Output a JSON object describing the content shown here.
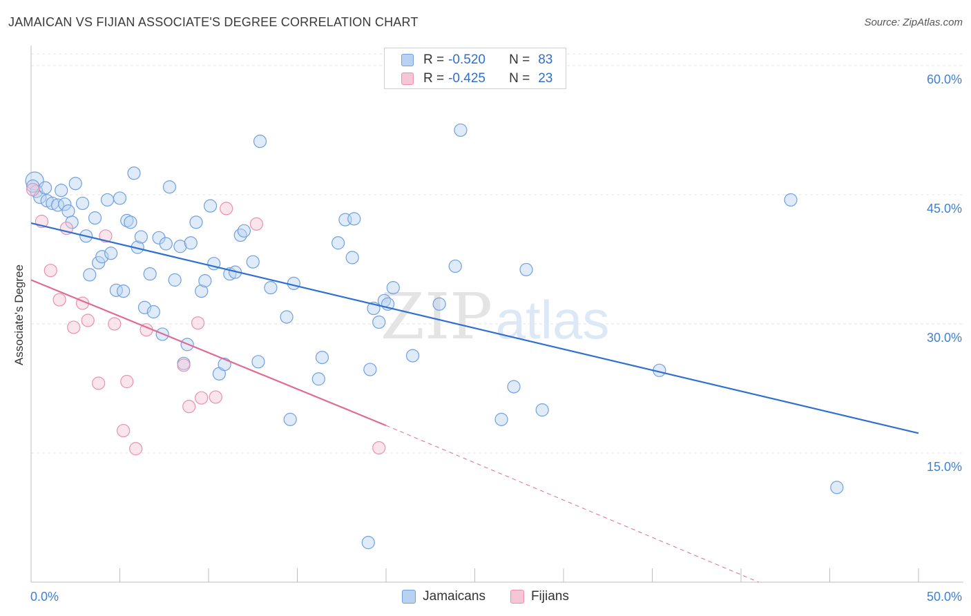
{
  "chart_data": {
    "type": "scatter",
    "title": "JAMAICAN VS FIJIAN ASSOCIATE'S DEGREE CORRELATION CHART",
    "source": "Source: ZipAtlas.com",
    "xlabel": "",
    "ylabel": "Associate's Degree",
    "xlim": [
      0,
      50
    ],
    "ylim": [
      0,
      62
    ],
    "x_tick_labels": [
      "0.0%",
      "50.0%"
    ],
    "y_ticks": [
      15,
      30,
      45,
      60
    ],
    "y_tick_labels": [
      "15.0%",
      "30.0%",
      "45.0%",
      "60.0%"
    ],
    "watermark": {
      "zip": "ZIP",
      "atlas": "atlas"
    },
    "legend": [
      {
        "name": "Jamaicans",
        "r_label": "R =",
        "r": "-0.520",
        "n_label": "N =",
        "n": "83",
        "color": "#6fa0e0",
        "fill": "#b9d2f2"
      },
      {
        "name": "Fijians",
        "r_label": "R =",
        "r": "-0.425",
        "n_label": "N =",
        "n": "23",
        "color": "#e890ad",
        "fill": "#f7c6d6"
      }
    ],
    "series": [
      {
        "name": "Jamaicans",
        "color": "#6fa0e0",
        "trend": {
          "x0": 0,
          "y0": 41.7,
          "x1": 50,
          "y1": 17.3,
          "color": "#2e6fd0"
        },
        "points": [
          [
            0.2,
            46.6
          ],
          [
            0.3,
            45.4
          ],
          [
            0.5,
            44.7
          ],
          [
            0.8,
            45.8
          ],
          [
            0.9,
            44.3
          ],
          [
            1.2,
            44.0
          ],
          [
            1.5,
            43.8
          ],
          [
            1.7,
            45.5
          ],
          [
            1.9,
            43.9
          ],
          [
            2.1,
            43.1
          ],
          [
            2.3,
            41.8
          ],
          [
            2.5,
            46.3
          ],
          [
            2.9,
            44.0
          ],
          [
            3.1,
            40.2
          ],
          [
            3.3,
            35.7
          ],
          [
            3.6,
            42.3
          ],
          [
            3.8,
            37.1
          ],
          [
            4.0,
            37.8
          ],
          [
            4.3,
            44.4
          ],
          [
            4.5,
            38.2
          ],
          [
            4.8,
            33.9
          ],
          [
            5.0,
            44.6
          ],
          [
            5.2,
            33.8
          ],
          [
            5.4,
            42.0
          ],
          [
            5.6,
            41.8
          ],
          [
            5.8,
            47.5
          ],
          [
            6.0,
            38.9
          ],
          [
            6.2,
            40.1
          ],
          [
            6.4,
            31.9
          ],
          [
            6.7,
            35.8
          ],
          [
            6.9,
            31.4
          ],
          [
            7.2,
            40.0
          ],
          [
            7.4,
            28.8
          ],
          [
            7.6,
            39.3
          ],
          [
            7.8,
            45.9
          ],
          [
            8.1,
            35.1
          ],
          [
            8.4,
            39.0
          ],
          [
            8.6,
            25.4
          ],
          [
            8.8,
            27.6
          ],
          [
            9.0,
            39.4
          ],
          [
            9.3,
            41.8
          ],
          [
            9.6,
            33.8
          ],
          [
            9.8,
            35.0
          ],
          [
            10.1,
            43.7
          ],
          [
            10.3,
            37.0
          ],
          [
            10.6,
            24.2
          ],
          [
            10.9,
            25.3
          ],
          [
            11.2,
            35.8
          ],
          [
            11.5,
            36.0
          ],
          [
            11.8,
            40.3
          ],
          [
            12.0,
            40.8
          ],
          [
            12.5,
            37.2
          ],
          [
            12.8,
            25.6
          ],
          [
            12.9,
            51.2
          ],
          [
            13.5,
            34.2
          ],
          [
            14.4,
            30.8
          ],
          [
            14.6,
            18.9
          ],
          [
            14.8,
            34.7
          ],
          [
            16.2,
            23.6
          ],
          [
            16.4,
            26.1
          ],
          [
            17.3,
            39.4
          ],
          [
            17.7,
            42.1
          ],
          [
            18.2,
            42.2
          ],
          [
            18.1,
            37.7
          ],
          [
            19.0,
            4.6
          ],
          [
            19.1,
            24.7
          ],
          [
            19.3,
            31.8
          ],
          [
            19.6,
            30.2
          ],
          [
            19.9,
            32.7
          ],
          [
            20.1,
            32.3
          ],
          [
            20.4,
            34.2
          ],
          [
            21.5,
            26.3
          ],
          [
            23.0,
            32.3
          ],
          [
            23.9,
            36.7
          ],
          [
            24.2,
            52.5
          ],
          [
            26.5,
            18.9
          ],
          [
            27.2,
            22.7
          ],
          [
            27.9,
            36.3
          ],
          [
            28.8,
            20.0
          ],
          [
            35.4,
            24.6
          ],
          [
            42.8,
            44.4
          ],
          [
            45.4,
            11.0
          ],
          [
            0.1,
            46.0
          ]
        ]
      },
      {
        "name": "Fijians",
        "color": "#e890ad",
        "trend": {
          "x0": 0,
          "y0": 35.1,
          "x1": 20,
          "y1": 18.2,
          "x2": 41,
          "y2": 0,
          "color": "#e06a94"
        },
        "points": [
          [
            0.1,
            45.6
          ],
          [
            0.6,
            41.9
          ],
          [
            1.1,
            36.2
          ],
          [
            1.6,
            32.8
          ],
          [
            2.0,
            41.1
          ],
          [
            2.4,
            29.6
          ],
          [
            2.9,
            32.4
          ],
          [
            3.2,
            30.4
          ],
          [
            3.8,
            23.1
          ],
          [
            4.2,
            40.2
          ],
          [
            4.7,
            30.0
          ],
          [
            5.2,
            17.6
          ],
          [
            5.4,
            23.3
          ],
          [
            5.9,
            15.5
          ],
          [
            6.5,
            29.3
          ],
          [
            8.6,
            25.2
          ],
          [
            8.9,
            20.4
          ],
          [
            9.4,
            30.1
          ],
          [
            9.6,
            21.4
          ],
          [
            10.4,
            21.5
          ],
          [
            11.0,
            43.4
          ],
          [
            12.7,
            41.6
          ],
          [
            19.6,
            15.6
          ]
        ]
      }
    ]
  }
}
